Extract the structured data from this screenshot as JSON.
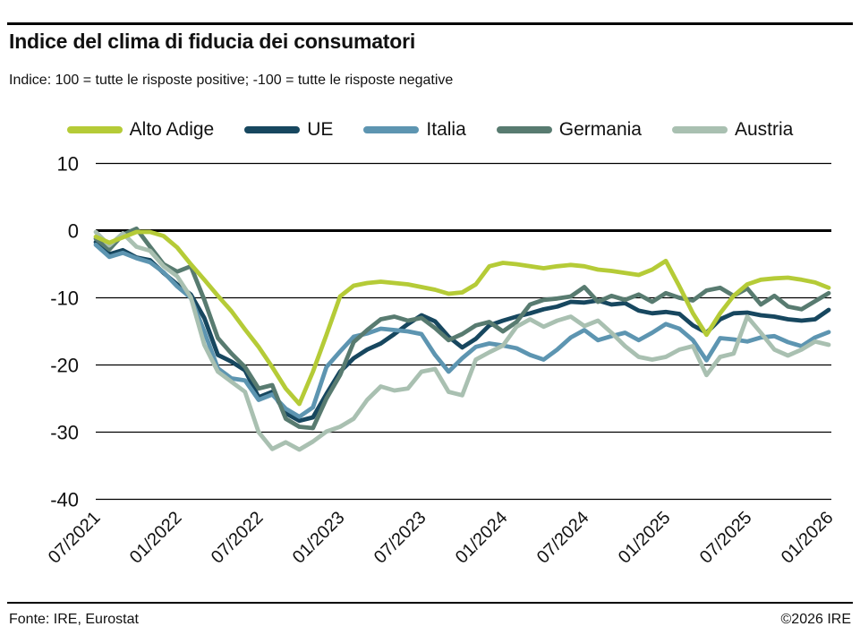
{
  "header": {
    "title": "Indice del clima di fiducia dei consumatori",
    "subtitle": "Indice: 100 = tutte le risposte positive; -100 =  tutte le risposte negative"
  },
  "footer": {
    "source": "Fonte: IRE, Eurostat",
    "copyright": "©2026 IRE"
  },
  "colors": {
    "grid": "#000000",
    "zero_line": "#000000",
    "text": "#111111"
  },
  "chart_data": {
    "type": "line",
    "title": "Indice del clima di fiducia dei consumatori",
    "xlabel": "",
    "ylabel": "",
    "grid": "horizontal",
    "legend_position": "top",
    "ylim": [
      -40,
      10
    ],
    "y_ticks": [
      10,
      0,
      -10,
      -20,
      -30,
      -40
    ],
    "x_count": 55,
    "x_tick_indices": [
      0,
      6,
      12,
      18,
      24,
      30,
      36,
      42,
      48,
      54
    ],
    "x_tick_labels": [
      "07/2021",
      "01/2022",
      "07/2022",
      "01/2023",
      "07/2023",
      "01/2024",
      "07/2024",
      "01/2025",
      "07/2025",
      "01/2026"
    ],
    "series": [
      {
        "name": "Alto Adige",
        "color": "#b5cb37",
        "values": [
          -0.9,
          -1.8,
          -1.0,
          -0.2,
          -0.2,
          -0.8,
          -2.5,
          -5.0,
          -7.3,
          -9.7,
          -12.0,
          -14.7,
          -17.3,
          -20.3,
          -23.5,
          -25.8,
          -21.0,
          -15.5,
          -9.8,
          -8.2,
          -7.8,
          -7.6,
          -7.8,
          -8.0,
          -8.4,
          -8.8,
          -9.4,
          -9.2,
          -8.0,
          -5.3,
          -4.8,
          -5.0,
          -5.3,
          -5.6,
          -5.3,
          -5.1,
          -5.3,
          -5.8,
          -6.0,
          -6.3,
          -6.6,
          -5.8,
          -4.5,
          -8.3,
          -12.3,
          -15.5,
          -12.3,
          -9.7,
          -8.0,
          -7.3,
          -7.1,
          -7.0,
          -7.3,
          -7.7,
          -8.5
        ]
      },
      {
        "name": "UE",
        "color": "#17475f",
        "values": [
          -1.7,
          -3.5,
          -2.9,
          -4.0,
          -4.4,
          -6.3,
          -8.0,
          -9.5,
          -13.0,
          -18.5,
          -19.5,
          -20.8,
          -24.8,
          -24.0,
          -27.2,
          -28.3,
          -27.8,
          -24.3,
          -21.0,
          -19.0,
          -17.7,
          -16.8,
          -15.4,
          -13.9,
          -12.6,
          -13.5,
          -15.8,
          -17.4,
          -16.1,
          -14.1,
          -13.4,
          -12.8,
          -12.3,
          -11.7,
          -11.3,
          -10.6,
          -10.7,
          -10.4,
          -11.0,
          -10.8,
          -11.9,
          -12.3,
          -12.1,
          -12.4,
          -14.1,
          -15.2,
          -13.2,
          -12.3,
          -12.2,
          -12.6,
          -12.8,
          -13.2,
          -13.4,
          -13.2,
          -11.8
        ]
      },
      {
        "name": "Italia",
        "color": "#5d95b1",
        "values": [
          -2.1,
          -3.9,
          -3.3,
          -4.1,
          -4.7,
          -6.2,
          -8.3,
          -10.0,
          -15.0,
          -20.5,
          -22.0,
          -22.3,
          -25.2,
          -24.4,
          -26.5,
          -27.7,
          -26.3,
          -20.3,
          -18.0,
          -15.8,
          -15.3,
          -14.6,
          -14.8,
          -15.0,
          -15.4,
          -18.5,
          -21.0,
          -19.0,
          -17.3,
          -16.8,
          -17.1,
          -17.5,
          -18.5,
          -19.2,
          -17.7,
          -15.9,
          -14.8,
          -16.3,
          -15.7,
          -15.2,
          -16.3,
          -15.2,
          -13.9,
          -14.6,
          -16.3,
          -19.3,
          -16.0,
          -16.2,
          -16.5,
          -15.9,
          -15.7,
          -16.6,
          -17.2,
          -15.9,
          -15.1
        ]
      },
      {
        "name": "Germania",
        "color": "#587b70",
        "values": [
          -1.2,
          -2.8,
          -0.6,
          0.3,
          -2.4,
          -5.0,
          -6.1,
          -5.3,
          -10.3,
          -16.0,
          -18.3,
          -20.3,
          -23.5,
          -23.0,
          -28.0,
          -29.2,
          -29.4,
          -25.0,
          -21.5,
          -16.6,
          -14.8,
          -13.2,
          -12.8,
          -13.4,
          -13.0,
          -14.5,
          -16.3,
          -15.4,
          -14.1,
          -13.6,
          -15.0,
          -13.6,
          -11.0,
          -10.3,
          -10.1,
          -9.8,
          -8.4,
          -10.6,
          -9.7,
          -10.3,
          -9.5,
          -10.6,
          -9.3,
          -10.0,
          -10.4,
          -8.9,
          -8.5,
          -9.7,
          -8.6,
          -11.0,
          -9.7,
          -11.3,
          -11.7,
          -10.5,
          -9.3
        ]
      },
      {
        "name": "Austria",
        "color": "#a9c0b1",
        "values": [
          -0.2,
          -2.2,
          -0.4,
          -2.4,
          -3.0,
          -5.3,
          -6.8,
          -9.9,
          -17.0,
          -21.0,
          -22.5,
          -24.0,
          -30.0,
          -32.5,
          -31.5,
          -32.6,
          -31.4,
          -29.9,
          -29.2,
          -28.0,
          -25.2,
          -23.2,
          -23.8,
          -23.5,
          -21.0,
          -20.6,
          -24.0,
          -24.5,
          -19.2,
          -18.1,
          -17.1,
          -14.3,
          -13.2,
          -14.3,
          -13.4,
          -12.8,
          -14.2,
          -13.4,
          -15.2,
          -17.2,
          -18.8,
          -19.2,
          -18.8,
          -17.7,
          -17.2,
          -21.5,
          -18.8,
          -18.3,
          -12.8,
          -15.2,
          -17.7,
          -18.6,
          -17.7,
          -16.5,
          -17.0
        ]
      }
    ]
  }
}
